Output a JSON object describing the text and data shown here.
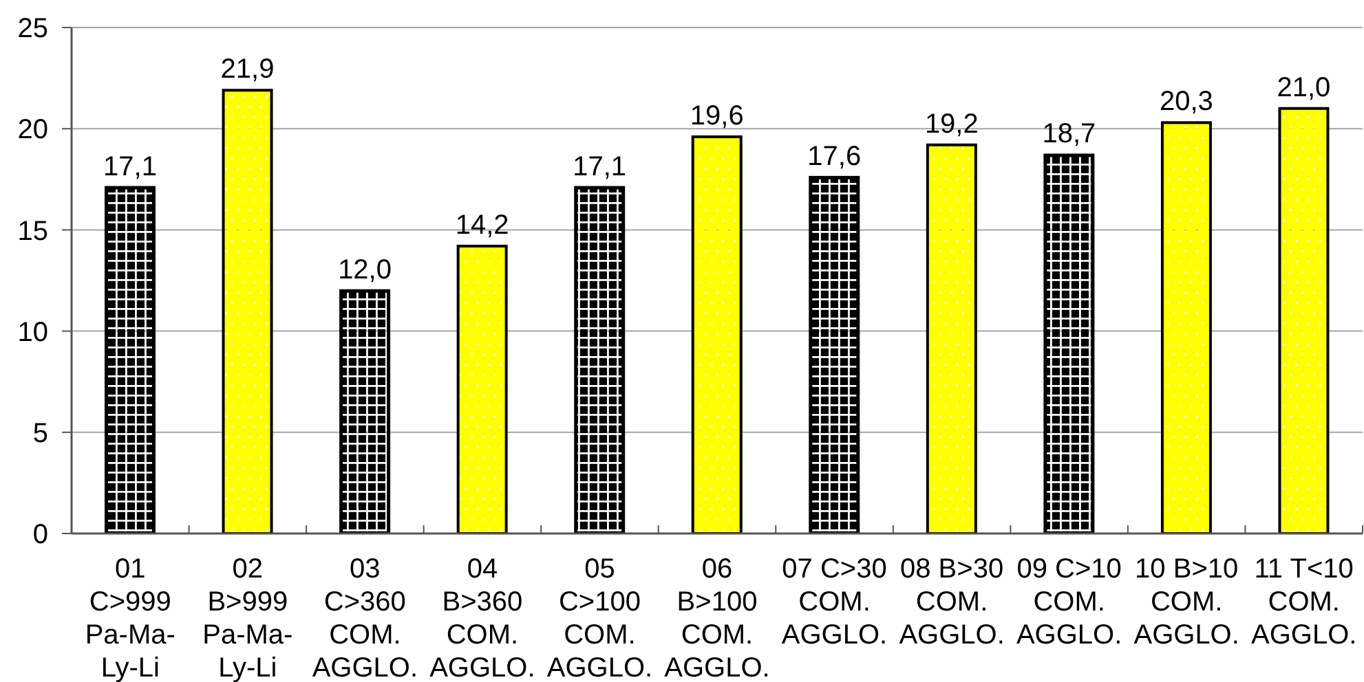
{
  "chart_data": {
    "type": "bar",
    "categories": [
      "01 C>999 Pa-Ma-Ly-Li",
      "02 B>999 Pa-Ma-Ly-Li",
      "03 C>360 COM. AGGLO.",
      "04 B>360 COM. AGGLO.",
      "05 C>100 COM. AGGLO.",
      "06 B>100 COM. AGGLO.",
      "07 C>30 COM. AGGLO.",
      "08 B>30 COM. AGGLO.",
      "09 C>10 COM. AGGLO.",
      "10 B>10 COM. AGGLO.",
      "11 T<10 COM. AGGLO."
    ],
    "values": [
      17.1,
      21.9,
      12.0,
      14.2,
      17.1,
      19.6,
      17.6,
      19.2,
      18.7,
      20.3,
      21.0
    ],
    "value_labels": [
      "17,1",
      "21,9",
      "12,0",
      "14,2",
      "17,1",
      "19,6",
      "17,6",
      "19,2",
      "18,7",
      "20,3",
      "21,0"
    ],
    "colors": [
      "#000000",
      "#ffff00",
      "#000000",
      "#ffff00",
      "#000000",
      "#ffff00",
      "#000000",
      "#ffff00",
      "#000000",
      "#ffff00",
      "#ffff00"
    ],
    "ylim": [
      0,
      25
    ],
    "yticks": [
      0,
      5,
      10,
      15,
      20,
      25
    ],
    "grid": "y"
  }
}
